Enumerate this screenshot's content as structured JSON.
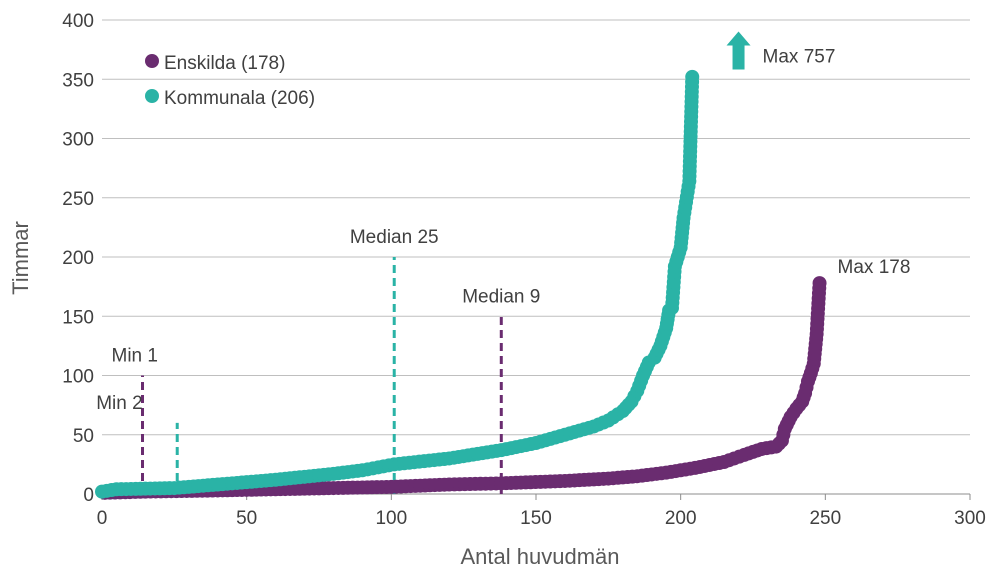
{
  "chart_data": {
    "type": "scatter",
    "xlabel": "Antal huvudmän",
    "ylabel": "Timmar",
    "xlim": [
      0,
      300
    ],
    "ylim": [
      0,
      400
    ],
    "xticks": [
      "0",
      "50",
      "100",
      "150",
      "200",
      "250",
      "300"
    ],
    "yticks": [
      "0",
      "50",
      "100",
      "150",
      "200",
      "250",
      "300",
      "350",
      "400"
    ],
    "grid": "horizontal",
    "legend_position": "top-left",
    "series": [
      {
        "name": "Enskilda (178)",
        "color": "#6a2c70",
        "points": [
          [
            1,
            1
          ],
          [
            15,
            2
          ],
          [
            40,
            3
          ],
          [
            60,
            4
          ],
          [
            80,
            5
          ],
          [
            100,
            6
          ],
          [
            120,
            8
          ],
          [
            138,
            9
          ],
          [
            160,
            11
          ],
          [
            175,
            13
          ],
          [
            185,
            15
          ],
          [
            195,
            18
          ],
          [
            205,
            22
          ],
          [
            215,
            27
          ],
          [
            222,
            33
          ],
          [
            228,
            38
          ],
          [
            233,
            40
          ],
          [
            235,
            45
          ],
          [
            236,
            55
          ],
          [
            238,
            65
          ],
          [
            240,
            72
          ],
          [
            242,
            78
          ],
          [
            243,
            85
          ],
          [
            244,
            95
          ],
          [
            245,
            102
          ],
          [
            246,
            110
          ],
          [
            247,
            135
          ],
          [
            248,
            178
          ]
        ]
      },
      {
        "name": "Kommunala (206)",
        "color": "#2ab3a6",
        "points": [
          [
            0,
            2
          ],
          [
            5,
            4
          ],
          [
            25,
            5
          ],
          [
            40,
            8
          ],
          [
            60,
            12
          ],
          [
            80,
            17
          ],
          [
            90,
            20
          ],
          [
            101,
            25
          ],
          [
            120,
            30
          ],
          [
            138,
            37
          ],
          [
            150,
            43
          ],
          [
            160,
            50
          ],
          [
            170,
            57
          ],
          [
            175,
            62
          ],
          [
            180,
            70
          ],
          [
            183,
            78
          ],
          [
            185,
            87
          ],
          [
            187,
            100
          ],
          [
            189,
            111
          ],
          [
            191,
            115
          ],
          [
            193,
            125
          ],
          [
            195,
            140
          ],
          [
            196,
            155
          ],
          [
            197,
            157
          ],
          [
            198,
            192
          ],
          [
            199,
            200
          ],
          [
            200,
            208
          ],
          [
            201,
            233
          ],
          [
            203,
            264
          ],
          [
            204,
            352
          ]
        ]
      }
    ],
    "annotations": [
      {
        "text": "Min 1",
        "x": 14,
        "y_top": 100,
        "color": "#6a2c70"
      },
      {
        "text": "Min 2",
        "x": 26,
        "y_top": 60,
        "color": "#2ab3a6"
      },
      {
        "text": "Median 25",
        "x": 101,
        "y_top": 200,
        "color": "#2ab3a6"
      },
      {
        "text": "Median 9",
        "x": 138,
        "y_top": 150,
        "color": "#6a2c70"
      },
      {
        "text": "Max 178",
        "x": 248,
        "y": 178
      },
      {
        "text": "Max 757",
        "x": 220,
        "y": 370,
        "arrow_color": "#2ab3a6"
      }
    ]
  }
}
